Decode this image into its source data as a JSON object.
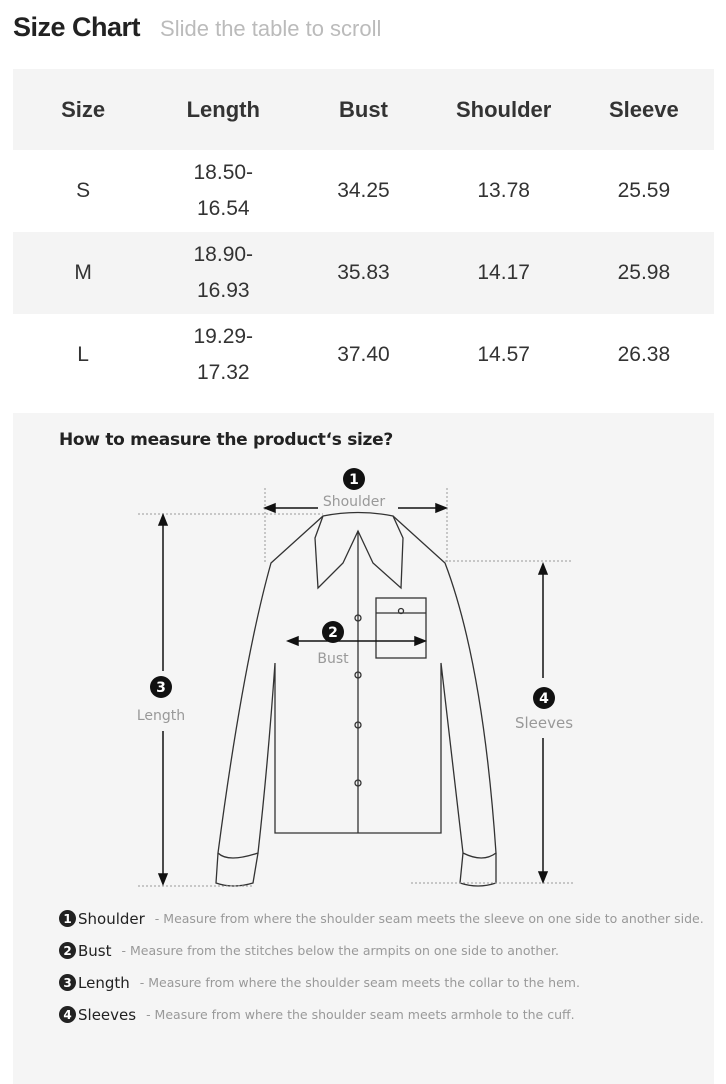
{
  "header": {
    "title": "Size Chart",
    "subtitle": "Slide the table to scroll"
  },
  "table": {
    "columns": [
      "Size",
      "Length",
      "Bust",
      "Shoulder",
      "Sleeve"
    ],
    "rows": [
      [
        "S",
        "18.50-\n16.54",
        "34.25",
        "13.78",
        "25.59"
      ],
      [
        "M",
        "18.90-\n16.93",
        "35.83",
        "14.17",
        "25.98"
      ],
      [
        "L",
        "19.29-\n17.32",
        "37.40",
        "14.57",
        "26.38"
      ]
    ]
  },
  "guide": {
    "title": "How to measure the product‘s size?",
    "labels": {
      "shoulder": "Shoulder",
      "bust": "Bust",
      "length": "Length",
      "sleeves": "Sleeves"
    },
    "numbers": [
      "1",
      "2",
      "3",
      "4"
    ],
    "legend": [
      {
        "num": "1",
        "name": "Shoulder",
        "desc": "- Measure from where the shoulder seam meets the sleeve on one side to another side."
      },
      {
        "num": "2",
        "name": "Bust",
        "desc": "- Measure from the stitches below the armpits on one side to another."
      },
      {
        "num": "3",
        "name": "Length",
        "desc": "- Measure from where the shoulder seam meets the collar to the hem."
      },
      {
        "num": "4",
        "name": "Sleeves",
        "desc": "- Measure from where the shoulder seam meets armhole to the cuff."
      }
    ]
  }
}
